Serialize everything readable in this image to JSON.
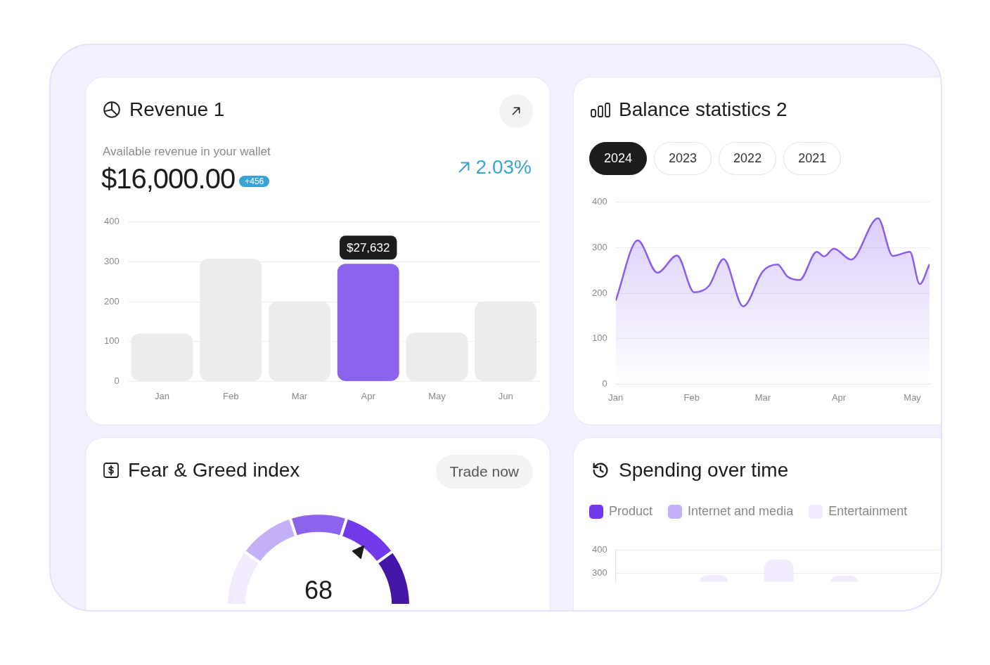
{
  "chart_data": [
    {
      "type": "bar",
      "title": "Revenue 1",
      "subtitle": "Available revenue in your wallet",
      "categories": [
        "Jan",
        "Feb",
        "Mar",
        "Apr",
        "May",
        "Jun"
      ],
      "values": [
        120,
        308,
        200,
        295,
        122,
        200
      ],
      "colors": [
        "#ececec",
        "#ececec",
        "#ececec",
        "#8b63ec",
        "#ececec",
        "#ececec"
      ],
      "ylim": [
        0,
        400
      ],
      "yticks": [
        0,
        100,
        200,
        300,
        400
      ],
      "grid": "y",
      "annotations": [
        "$16,000.00",
        "+456",
        "2.03%",
        {
          "text": "$27,632",
          "x": "Apr",
          "y": 295
        }
      ]
    },
    {
      "type": "area",
      "title": "Balance statistics 2",
      "x": [
        "--01-01",
        "--01-10",
        "--01-18",
        "--01-26",
        "--02-02",
        "--02-08",
        "--02-14",
        "--02-22",
        "--03-01",
        "--03-07",
        "--03-11",
        "--03-16",
        "--03-23",
        "--03-26",
        "--03-30",
        "--04-06",
        "--04-17",
        "--04-23",
        "--04-30",
        "--05-04",
        "--05-08"
      ],
      "values": [
        184,
        316,
        245,
        283,
        202,
        216,
        275,
        171,
        248,
        263,
        237,
        229,
        291,
        281,
        298,
        274,
        365,
        282,
        291,
        220,
        264
      ],
      "color": "#8b5cf0",
      "xlim": [
        "--01-01",
        "--05-08"
      ],
      "xticks": [
        {
          "value": "--01-01",
          "label": "Jan"
        },
        {
          "value": "--02-01",
          "label": "Feb"
        },
        {
          "value": "--03-01",
          "label": "Mar"
        },
        {
          "value": "--04-01",
          "label": "Apr"
        },
        {
          "value": "--05-01",
          "label": "May"
        }
      ],
      "ylim": [
        0,
        400
      ],
      "yticks": [
        0,
        100,
        200,
        300,
        400
      ],
      "grid": "y",
      "annotations": [
        "2024",
        "2023",
        "2022",
        "2021"
      ]
    },
    {
      "type": "donut",
      "title": "Fear & Greed index",
      "categories": [
        null,
        null,
        null,
        null,
        null
      ],
      "values": [
        20,
        20,
        20,
        20,
        20
      ],
      "colors": [
        "#f1ebfd",
        "#c4b0f7",
        "#8b63ec",
        "#7239ea",
        "#4316a8"
      ],
      "annotations": [
        "Trade now",
        "68"
      ]
    },
    {
      "type": "bar",
      "title": "Spending over time",
      "categories": [
        null,
        null,
        null,
        null,
        null
      ],
      "series": [
        {
          "name": "Product",
          "color": "#7239ea",
          "values": [
            null,
            null,
            null,
            null,
            null
          ]
        },
        {
          "name": "Internet and media",
          "color": "#c4b0f7",
          "values": [
            null,
            null,
            null,
            null,
            null
          ]
        },
        {
          "name": "Entertainment",
          "color": "#f1ebfd",
          "values": [
            null,
            290,
            359,
            288,
            null
          ]
        }
      ],
      "ylim": [
        262,
        400
      ],
      "yticks": [
        300,
        400
      ],
      "grid": "y",
      "legend": "top left"
    }
  ]
}
